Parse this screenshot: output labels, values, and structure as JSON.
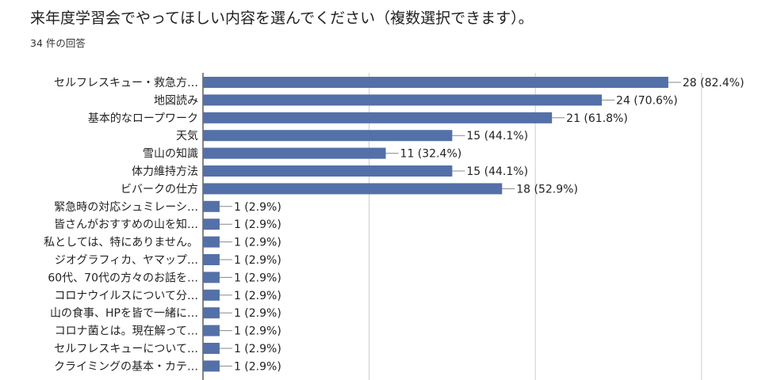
{
  "title": "来年度学習会でやってほしい内容を選んでください（複数選択できます）。",
  "subtitle": "34 件の回答",
  "chart_data": {
    "type": "bar",
    "orientation": "horizontal",
    "title": "来年度学習会でやってほしい内容を選んでください（複数選択できます）。",
    "total_responses": 34,
    "categories": [
      "セルフレスキュー・救急方…",
      "地図読み",
      "基本的なロープワーク",
      "天気",
      "雪山の知識",
      "体力維持方法",
      "ビバークの仕方",
      "緊急時の対応シュミレーシ…",
      "皆さんがおすすめの山を知…",
      "私としては、特にありません。",
      "ジオグラフィカ、ヤマップ…",
      "60代、70代の方々のお話を…",
      "コロナウイルスについて分…",
      "山の食事、HPを皆で一緒に…",
      "コロナ菌とは。現在解って…",
      "セルフレスキューについて…",
      "クライミングの基本・カテ…"
    ],
    "values": [
      28,
      24,
      21,
      15,
      11,
      15,
      18,
      1,
      1,
      1,
      1,
      1,
      1,
      1,
      1,
      1,
      1
    ],
    "data_labels": [
      "28 (82.4%)",
      "24 (70.6%)",
      "21 (61.8%)",
      "15 (44.1%)",
      "11 (32.4%)",
      "15 (44.1%)",
      "18 (52.9%)",
      "1 (2.9%)",
      "1 (2.9%)",
      "1 (2.9%)",
      "1 (2.9%)",
      "1 (2.9%)",
      "1 (2.9%)",
      "1 (2.9%)",
      "1 (2.9%)",
      "1 (2.9%)",
      "1 (2.9%)"
    ],
    "xlim": [
      0,
      30
    ],
    "grid": true,
    "bar_color": "#5470a8"
  }
}
